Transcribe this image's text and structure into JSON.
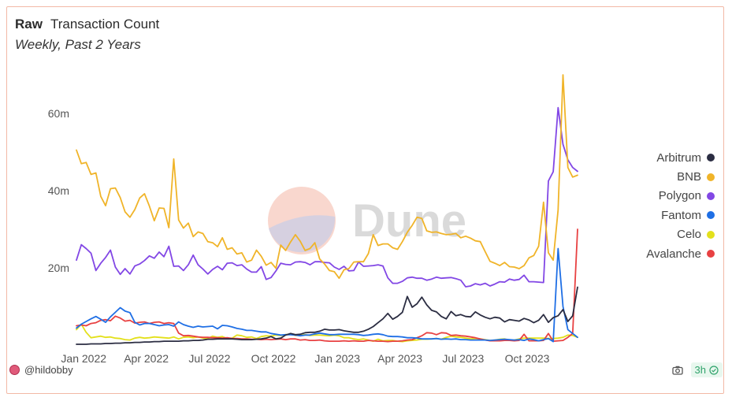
{
  "header": {
    "title_bold": "Raw",
    "title": "Transaction Count",
    "subtitle": "Weekly, Past 2 Years"
  },
  "watermark": "Dune",
  "footer": {
    "username": "@hildobby",
    "refresh": "3h"
  },
  "chart_data": {
    "type": "line",
    "x_ticks": [
      "Jan 2022",
      "Apr 2022",
      "Jul 2022",
      "Oct 2022",
      "Jan 2023",
      "Apr 2023",
      "Jul 2023",
      "Oct 2023"
    ],
    "y_ticks": [
      "20m",
      "40m",
      "60m"
    ],
    "y_tick_values": [
      20000000,
      40000000,
      60000000
    ],
    "ylim": [
      0,
      72000000
    ],
    "x_start": "2022-01-03",
    "weeks": 104,
    "legend_position": "right",
    "grid": false,
    "series": [
      {
        "name": "Arbitrum",
        "color": "#2b2d42",
        "values": [
          0.2,
          0.2,
          0.2,
          0.3,
          0.3,
          0.3,
          0.4,
          0.4,
          0.5,
          0.5,
          0.6,
          0.6,
          0.7,
          0.7,
          0.8,
          0.8,
          0.9,
          0.9,
          1.0,
          1.0,
          1.0,
          1.0,
          1.1,
          1.1,
          1.2,
          1.2,
          1.3,
          1.5,
          1.5,
          1.6,
          1.6,
          1.6,
          1.6,
          1.5,
          1.4,
          1.4,
          1.4,
          1.5,
          1.6,
          1.8,
          2.2,
          1.6,
          1.8,
          2.6,
          3.0,
          2.7,
          2.8,
          3.2,
          3.3,
          3.3,
          3.6,
          4.1,
          3.9,
          3.9,
          4.0,
          3.7,
          3.5,
          3.3,
          3.3,
          3.6,
          4.1,
          4.8,
          5.8,
          6.8,
          8.2,
          6.7,
          7.4,
          8.5,
          12.6,
          9.8,
          10.7,
          12.4,
          10.4,
          9.0,
          8.6,
          7.4,
          6.8,
          8.7,
          7.6,
          7.9,
          7.4,
          7.3,
          8.6,
          7.8,
          7.2,
          6.8,
          7.2,
          7.0,
          6.0,
          6.6,
          6.4,
          6.2,
          6.9,
          6.5,
          5.8,
          6.4,
          7.9,
          5.9,
          7.1,
          7.6,
          9.2,
          6.1,
          7.6,
          15.0
        ]
      },
      {
        "name": "BNB",
        "color": "#f0b429",
        "values": [
          50.5,
          47.0,
          47.3,
          44.2,
          44.6,
          38.5,
          36.1,
          40.5,
          40.7,
          38.2,
          34.5,
          33.1,
          35.1,
          38.1,
          39.2,
          36.0,
          32.2,
          35.5,
          35.4,
          30.4,
          48.2,
          32.4,
          30.3,
          31.6,
          28.1,
          29.3,
          28.9,
          26.8,
          26.5,
          25.5,
          27.8,
          24.8,
          25.2,
          23.6,
          23.9,
          21.5,
          22.0,
          24.6,
          23.0,
          20.7,
          21.4,
          19.9,
          25.9,
          24.5,
          26.7,
          28.6,
          26.9,
          24.5,
          25.0,
          26.5,
          22.3,
          21.0,
          19.3,
          19.0,
          17.3,
          19.5,
          19.8,
          21.5,
          21.6,
          21.6,
          23.7,
          28.6,
          25.8,
          26.2,
          26.2,
          25.2,
          24.8,
          26.8,
          29.2,
          31.0,
          33.1,
          32.8,
          29.6,
          29.2,
          29.3,
          28.9,
          28.6,
          28.7,
          28.9,
          27.8,
          28.2,
          27.7,
          27.0,
          26.8,
          24.2,
          21.7,
          21.2,
          20.6,
          21.4,
          20.3,
          20.2,
          19.8,
          20.6,
          22.6,
          23.2,
          25.6,
          37.0,
          23.9,
          22.0,
          35.0,
          70.0,
          46.0,
          43.5,
          44.0
        ]
      },
      {
        "name": "Polygon",
        "color": "#8247e5",
        "values": [
          22.0,
          26.0,
          25.0,
          23.8,
          19.3,
          21.2,
          22.7,
          24.6,
          20.2,
          18.3,
          19.8,
          18.4,
          20.5,
          21.0,
          21.9,
          23.1,
          22.5,
          24.1,
          22.9,
          25.6,
          20.4,
          20.5,
          19.3,
          20.8,
          23.3,
          20.8,
          19.7,
          18.4,
          19.6,
          20.4,
          19.5,
          21.2,
          21.3,
          20.6,
          20.8,
          19.7,
          18.9,
          18.9,
          20.3,
          17.0,
          17.5,
          19.2,
          21.2,
          20.9,
          20.8,
          21.5,
          21.6,
          21.4,
          20.8,
          21.6,
          21.6,
          21.4,
          21.3,
          20.2,
          19.6,
          20.4,
          19.2,
          19.3,
          21.5,
          20.4,
          20.5,
          20.6,
          20.8,
          20.5,
          17.4,
          16.0,
          16.0,
          16.5,
          17.4,
          17.6,
          17.3,
          17.3,
          16.8,
          17.1,
          17.6,
          17.3,
          17.4,
          17.5,
          17.2,
          16.8,
          15.1,
          15.3,
          15.9,
          15.6,
          16.0,
          15.3,
          15.8,
          16.4,
          16.3,
          17.1,
          16.8,
          17.0,
          18.1,
          16.4,
          16.4,
          16.3,
          16.2,
          42.5,
          44.9,
          61.5,
          52.0,
          48.0,
          46.0,
          45.0
        ]
      },
      {
        "name": "Fantom",
        "color": "#1f6fe5",
        "values": [
          4.4,
          5.4,
          6.1,
          6.8,
          7.4,
          6.7,
          5.9,
          7.3,
          8.5,
          9.7,
          8.8,
          8.4,
          5.9,
          5.2,
          5.6,
          5.6,
          5.3,
          5.0,
          5.2,
          5.3,
          4.9,
          6.0,
          5.3,
          4.9,
          4.6,
          4.9,
          4.7,
          4.8,
          4.9,
          4.2,
          5.1,
          5.0,
          4.7,
          4.3,
          4.1,
          3.8,
          3.8,
          3.6,
          3.4,
          3.4,
          3.0,
          2.8,
          2.6,
          2.7,
          2.7,
          2.6,
          2.4,
          2.6,
          2.6,
          2.9,
          3.1,
          2.9,
          2.7,
          2.7,
          2.8,
          2.8,
          2.8,
          2.8,
          2.7,
          2.5,
          2.6,
          2.8,
          2.9,
          2.7,
          2.3,
          2.2,
          2.2,
          2.1,
          1.9,
          1.9,
          1.8,
          1.6,
          1.6,
          1.6,
          1.7,
          1.5,
          1.6,
          1.5,
          1.6,
          1.4,
          1.4,
          1.3,
          1.3,
          1.3,
          1.3,
          1.2,
          1.3,
          1.4,
          1.5,
          1.4,
          1.3,
          1.4,
          1.2,
          1.6,
          1.4,
          1.1,
          1.4,
          1.7,
          0.9,
          25.0,
          10.0,
          4.0,
          3.0,
          2.0
        ]
      },
      {
        "name": "Celo",
        "color": "#e3e01b",
        "values": [
          4.0,
          5.4,
          3.3,
          1.9,
          2.1,
          2.3,
          2.0,
          2.1,
          1.8,
          1.7,
          1.4,
          1.3,
          1.8,
          2.0,
          1.8,
          1.9,
          2.1,
          2.0,
          1.9,
          1.8,
          2.1,
          1.6,
          2.0,
          2.1,
          1.9,
          2.1,
          1.8,
          1.7,
          2.3,
          2.0,
          2.2,
          1.7,
          1.8,
          2.6,
          2.4,
          2.0,
          2.1,
          1.7,
          2.2,
          2.4,
          2.3,
          2.6,
          2.5,
          2.7,
          2.8,
          2.5,
          2.6,
          2.7,
          2.5,
          2.6,
          2.6,
          2.5,
          2.4,
          2.6,
          2.4,
          1.9,
          1.9,
          1.6,
          1.4,
          1.6,
          1.3,
          1.0,
          1.5,
          1.1,
          1.2,
          1.2,
          1.0,
          0.9,
          1.1,
          1.2,
          1.3,
          1.5,
          1.5,
          1.6,
          1.7,
          1.5,
          2.0,
          2.3,
          2.1,
          2.0,
          1.8,
          1.6,
          1.7,
          1.6,
          1.4,
          1.2,
          1.3,
          1.5,
          1.6,
          1.3,
          1.3,
          1.6,
          1.8,
          1.8,
          1.8,
          1.8,
          1.8,
          1.7,
          1.7,
          1.8,
          2.0,
          2.6,
          2.5,
          2.0
        ]
      },
      {
        "name": "Avalanche",
        "color": "#e84142",
        "values": [
          5.0,
          5.2,
          5.0,
          5.6,
          5.8,
          6.4,
          6.6,
          6.3,
          7.5,
          7.0,
          6.2,
          6.4,
          5.7,
          5.9,
          6.0,
          5.6,
          5.9,
          6.0,
          5.6,
          5.8,
          5.6,
          3.1,
          2.4,
          2.5,
          2.3,
          2.1,
          2.0,
          2.0,
          1.9,
          1.9,
          1.8,
          1.9,
          1.7,
          1.7,
          1.6,
          1.6,
          1.5,
          1.5,
          1.4,
          1.5,
          1.4,
          1.5,
          1.6,
          1.4,
          1.6,
          1.6,
          1.3,
          1.4,
          1.2,
          1.2,
          1.3,
          1.1,
          1.0,
          1.0,
          1.0,
          1.1,
          1.0,
          1.1,
          1.0,
          1.0,
          1.2,
          1.1,
          1.0,
          1.0,
          0.9,
          1.0,
          1.0,
          1.1,
          1.3,
          1.4,
          1.9,
          2.4,
          3.2,
          3.1,
          2.7,
          3.2,
          3.1,
          2.5,
          2.6,
          2.4,
          2.3,
          2.1,
          1.9,
          1.6,
          1.3,
          1.1,
          1.1,
          1.1,
          1.2,
          1.2,
          1.1,
          1.2,
          2.8,
          1.1,
          1.1,
          1.1,
          1.2,
          3.0,
          1.0,
          1.1,
          1.2,
          2.0,
          3.0,
          30.0
        ]
      }
    ]
  }
}
